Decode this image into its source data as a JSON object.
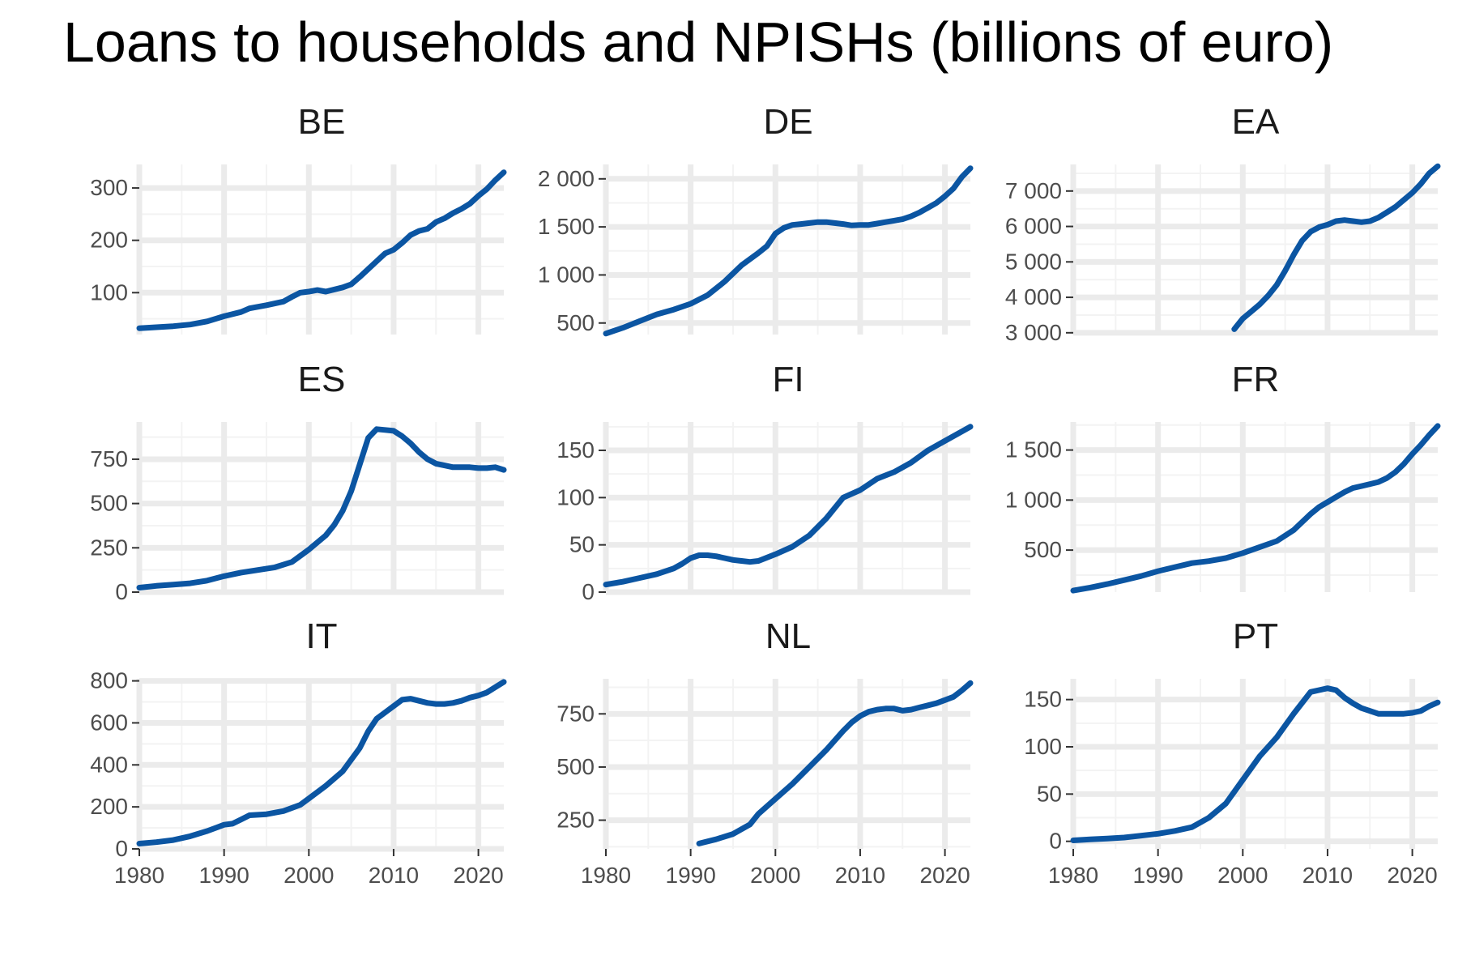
{
  "title": "Loans to households and NPISHs (billions of euro)",
  "colors": {
    "line": "#0b55a2",
    "grid_major": "#ebebeb",
    "grid_minor": "#f3f3f3",
    "tick_text": "#4d4d4d",
    "title": "#000000"
  },
  "chart_data": [
    {
      "type": "line",
      "title": "BE",
      "xlim": [
        1980,
        2023
      ],
      "ylim": [
        20,
        345
      ],
      "yticks": [
        100,
        200,
        300
      ],
      "ytick_labels": [
        "100",
        "200",
        "300"
      ],
      "xticks": [
        1980,
        1990,
        2000,
        2010,
        2020
      ],
      "xtick_labels": [],
      "x": [
        1980,
        1982,
        1984,
        1986,
        1988,
        1990,
        1992,
        1993,
        1995,
        1997,
        1998,
        1999,
        2000,
        2001,
        2002,
        2004,
        2005,
        2006,
        2007,
        2008,
        2009,
        2010,
        2011,
        2012,
        2013,
        2014,
        2015,
        2016,
        2017,
        2018,
        2019,
        2020,
        2021,
        2022,
        2023
      ],
      "y": [
        32,
        34,
        36,
        39,
        45,
        55,
        63,
        70,
        76,
        83,
        92,
        100,
        102,
        105,
        102,
        110,
        116,
        130,
        145,
        160,
        175,
        182,
        195,
        210,
        218,
        222,
        235,
        242,
        252,
        260,
        270,
        285,
        298,
        315,
        330
      ]
    },
    {
      "type": "line",
      "title": "DE",
      "xlim": [
        1980,
        2023
      ],
      "ylim": [
        380,
        2150
      ],
      "yticks": [
        500,
        1000,
        1500,
        2000
      ],
      "ytick_labels": [
        "500",
        "1 000",
        "1 500",
        "2 000"
      ],
      "xticks": [
        1980,
        1990,
        2000,
        2010,
        2020
      ],
      "xtick_labels": [],
      "x": [
        1980,
        1982,
        1984,
        1986,
        1988,
        1990,
        1992,
        1994,
        1996,
        1998,
        1999,
        2000,
        2001,
        2002,
        2003,
        2004,
        2005,
        2006,
        2007,
        2008,
        2009,
        2010,
        2011,
        2012,
        2013,
        2014,
        2015,
        2016,
        2017,
        2018,
        2019,
        2020,
        2021,
        2022,
        2023
      ],
      "y": [
        390,
        450,
        520,
        590,
        640,
        700,
        790,
        930,
        1100,
        1230,
        1300,
        1430,
        1490,
        1520,
        1530,
        1540,
        1550,
        1550,
        1540,
        1530,
        1515,
        1520,
        1520,
        1535,
        1550,
        1565,
        1580,
        1610,
        1650,
        1700,
        1750,
        1820,
        1900,
        2020,
        2110
      ]
    },
    {
      "type": "line",
      "title": "EA",
      "xlim": [
        1980,
        2023
      ],
      "ylim": [
        2950,
        7750
      ],
      "yticks": [
        3000,
        4000,
        5000,
        6000,
        7000
      ],
      "ytick_labels": [
        "3 000",
        "4 000",
        "5 000",
        "6 000",
        "7 000"
      ],
      "xticks": [
        1980,
        1990,
        2000,
        2010,
        2020
      ],
      "xtick_labels": [],
      "x": [
        1999,
        2000,
        2001,
        2002,
        2003,
        2004,
        2005,
        2006,
        2007,
        2008,
        2009,
        2010,
        2011,
        2012,
        2013,
        2014,
        2015,
        2016,
        2017,
        2018,
        2019,
        2020,
        2021,
        2022,
        2023
      ],
      "y": [
        3100,
        3400,
        3600,
        3800,
        4050,
        4350,
        4750,
        5200,
        5600,
        5850,
        5980,
        6050,
        6150,
        6180,
        6150,
        6120,
        6150,
        6250,
        6400,
        6550,
        6750,
        6950,
        7200,
        7500,
        7700
      ]
    },
    {
      "type": "line",
      "title": "ES",
      "xlim": [
        1980,
        2023
      ],
      "ylim": [
        0,
        960
      ],
      "yticks": [
        0,
        250,
        500,
        750
      ],
      "ytick_labels": [
        "0",
        "250",
        "500",
        "750"
      ],
      "xticks": [
        1980,
        1990,
        2000,
        2010,
        2020
      ],
      "xtick_labels": [],
      "x": [
        1980,
        1982,
        1984,
        1986,
        1988,
        1990,
        1992,
        1994,
        1996,
        1998,
        2000,
        2002,
        2003,
        2004,
        2005,
        2006,
        2007,
        2008,
        2009,
        2010,
        2011,
        2012,
        2013,
        2014,
        2015,
        2016,
        2017,
        2018,
        2019,
        2020,
        2021,
        2022,
        2023
      ],
      "y": [
        25,
        35,
        42,
        50,
        65,
        90,
        110,
        125,
        140,
        170,
        240,
        320,
        380,
        460,
        570,
        720,
        870,
        920,
        915,
        910,
        880,
        840,
        790,
        750,
        725,
        715,
        705,
        705,
        705,
        700,
        700,
        705,
        690
      ]
    },
    {
      "type": "line",
      "title": "FI",
      "xlim": [
        1980,
        2023
      ],
      "ylim": [
        0,
        180
      ],
      "yticks": [
        0,
        50,
        100,
        150
      ],
      "ytick_labels": [
        "0",
        "50",
        "100",
        "150"
      ],
      "xticks": [
        1980,
        1990,
        2000,
        2010,
        2020
      ],
      "xtick_labels": [],
      "x": [
        1980,
        1982,
        1984,
        1986,
        1988,
        1989,
        1990,
        1991,
        1992,
        1993,
        1994,
        1995,
        1996,
        1997,
        1998,
        2000,
        2002,
        2004,
        2006,
        2008,
        2010,
        2012,
        2014,
        2016,
        2018,
        2020,
        2022,
        2023
      ],
      "y": [
        8,
        11,
        15,
        19,
        25,
        30,
        36,
        39,
        39,
        38,
        36,
        34,
        33,
        32,
        33,
        40,
        48,
        60,
        78,
        100,
        108,
        120,
        127,
        137,
        150,
        160,
        170,
        175
      ]
    },
    {
      "type": "line",
      "title": "FR",
      "xlim": [
        1980,
        2023
      ],
      "ylim": [
        80,
        1780
      ],
      "yticks": [
        500,
        1000,
        1500
      ],
      "ytick_labels": [
        "500",
        "1 000",
        "1 500"
      ],
      "xticks": [
        1980,
        1990,
        2000,
        2010,
        2020
      ],
      "xtick_labels": [],
      "x": [
        1980,
        1982,
        1984,
        1986,
        1988,
        1990,
        1992,
        1994,
        1996,
        1998,
        2000,
        2002,
        2004,
        2006,
        2008,
        2009,
        2010,
        2011,
        2012,
        2013,
        2014,
        2015,
        2016,
        2017,
        2018,
        2019,
        2020,
        2021,
        2022,
        2023
      ],
      "y": [
        95,
        125,
        160,
        200,
        240,
        290,
        330,
        370,
        390,
        420,
        470,
        530,
        590,
        700,
        860,
        930,
        980,
        1030,
        1080,
        1120,
        1140,
        1160,
        1180,
        1220,
        1280,
        1360,
        1460,
        1550,
        1650,
        1740
      ]
    },
    {
      "type": "line",
      "title": "IT",
      "xlim": [
        1980,
        2023
      ],
      "ylim": [
        0,
        810
      ],
      "yticks": [
        0,
        200,
        400,
        600,
        800
      ],
      "ytick_labels": [
        "0",
        "200",
        "400",
        "600",
        "800"
      ],
      "xticks": [
        1980,
        1990,
        2000,
        2010,
        2020
      ],
      "xtick_labels": [
        "1980",
        "1990",
        "2000",
        "2010",
        "2020"
      ],
      "x": [
        1980,
        1982,
        1984,
        1986,
        1988,
        1989,
        1990,
        1991,
        1992,
        1993,
        1995,
        1997,
        1999,
        2000,
        2002,
        2004,
        2006,
        2007,
        2008,
        2009,
        2010,
        2011,
        2012,
        2013,
        2014,
        2015,
        2016,
        2017,
        2018,
        2019,
        2020,
        2021,
        2022,
        2023
      ],
      "y": [
        25,
        32,
        42,
        60,
        85,
        100,
        115,
        120,
        140,
        160,
        165,
        180,
        210,
        240,
        300,
        370,
        480,
        560,
        620,
        650,
        680,
        710,
        715,
        705,
        695,
        690,
        690,
        695,
        705,
        720,
        730,
        745,
        770,
        795
      ]
    },
    {
      "type": "line",
      "title": "NL",
      "xlim": [
        1980,
        2023
      ],
      "ylim": [
        115,
        915
      ],
      "yticks": [
        250,
        500,
        750
      ],
      "ytick_labels": [
        "250",
        "500",
        "750"
      ],
      "xticks": [
        1980,
        1990,
        2000,
        2010,
        2020
      ],
      "xtick_labels": [
        "1980",
        "1990",
        "2000",
        "2010",
        "2020"
      ],
      "x": [
        1991,
        1993,
        1995,
        1997,
        1998,
        2000,
        2002,
        2004,
        2006,
        2008,
        2009,
        2010,
        2011,
        2012,
        2013,
        2014,
        2015,
        2016,
        2017,
        2018,
        2019,
        2020,
        2021,
        2022,
        2023
      ],
      "y": [
        140,
        160,
        185,
        230,
        280,
        350,
        420,
        500,
        580,
        670,
        710,
        740,
        760,
        770,
        775,
        775,
        765,
        770,
        780,
        790,
        800,
        815,
        830,
        860,
        895
      ]
    },
    {
      "type": "line",
      "title": "PT",
      "xlim": [
        1980,
        2023
      ],
      "ylim": [
        -8,
        172
      ],
      "yticks": [
        0,
        50,
        100,
        150
      ],
      "ytick_labels": [
        "0",
        "50",
        "100",
        "150"
      ],
      "xticks": [
        1980,
        1990,
        2000,
        2010,
        2020
      ],
      "xtick_labels": [
        "1980",
        "1990",
        "2000",
        "2010",
        "2020"
      ],
      "x": [
        1980,
        1982,
        1984,
        1986,
        1988,
        1990,
        1992,
        1994,
        1996,
        1998,
        2000,
        2002,
        2004,
        2006,
        2008,
        2009,
        2010,
        2011,
        2012,
        2013,
        2014,
        2015,
        2016,
        2017,
        2018,
        2019,
        2020,
        2021,
        2022,
        2023
      ],
      "y": [
        1,
        2,
        3,
        4,
        6,
        8,
        11,
        15,
        25,
        40,
        65,
        90,
        110,
        135,
        158,
        160,
        162,
        160,
        152,
        146,
        141,
        138,
        135,
        135,
        135,
        135,
        136,
        138,
        143,
        147
      ]
    }
  ]
}
